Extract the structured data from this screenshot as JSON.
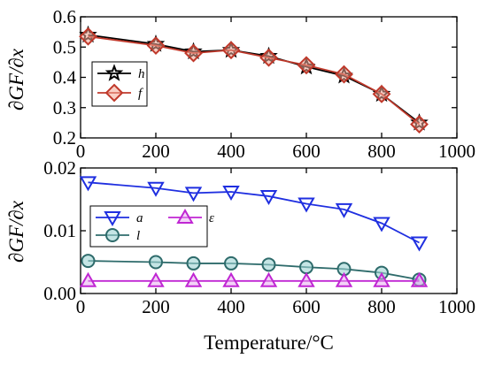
{
  "chart_data": [
    {
      "type": "line",
      "ylabel": "∂GF/∂x",
      "xlim": [
        0,
        1000
      ],
      "ylim": [
        0.2,
        0.6
      ],
      "xticks": [
        0,
        200,
        400,
        600,
        800,
        1000
      ],
      "yticks": [
        0.2,
        0.3,
        0.4,
        0.5,
        0.6
      ],
      "grid": false,
      "legend_position": "left",
      "series": [
        {
          "name": "h",
          "marker": "star",
          "color": "#000000",
          "x": [
            20,
            200,
            300,
            400,
            500,
            600,
            700,
            800,
            900
          ],
          "y": [
            0.54,
            0.51,
            0.485,
            0.49,
            0.47,
            0.435,
            0.405,
            0.345,
            0.25
          ]
        },
        {
          "name": "f",
          "marker": "diamond",
          "color": "#c0392b",
          "x": [
            20,
            200,
            300,
            400,
            500,
            600,
            700,
            800,
            900
          ],
          "y": [
            0.535,
            0.505,
            0.48,
            0.49,
            0.465,
            0.44,
            0.41,
            0.345,
            0.245
          ]
        }
      ]
    },
    {
      "type": "line",
      "xlabel": "Temperature/°C",
      "ylabel": "∂GF/∂x",
      "xlim": [
        0,
        1000
      ],
      "ylim": [
        0,
        0.02
      ],
      "xticks": [
        0,
        200,
        400,
        600,
        800,
        1000
      ],
      "yticks": [
        0,
        0.01,
        0.02
      ],
      "ytick_labels": [
        "0.00",
        "0.01",
        "0.02"
      ],
      "grid": false,
      "legend_position": "left",
      "series": [
        {
          "name": "a",
          "marker": "triangle-down",
          "color": "#1f2fe0",
          "x": [
            20,
            200,
            300,
            400,
            500,
            600,
            700,
            800,
            900
          ],
          "y": [
            0.0177,
            0.0168,
            0.016,
            0.0162,
            0.0155,
            0.0143,
            0.0134,
            0.0112,
            0.0081
          ]
        },
        {
          "name": "l",
          "marker": "circle",
          "color": "#2e6b6b",
          "x": [
            20,
            200,
            300,
            400,
            500,
            600,
            700,
            800,
            900
          ],
          "y": [
            0.0052,
            0.005,
            0.0048,
            0.0048,
            0.0046,
            0.0042,
            0.0039,
            0.0033,
            0.0022
          ]
        },
        {
          "name": "ε",
          "marker": "triangle-up",
          "color": "#c026d3",
          "x": [
            20,
            200,
            300,
            400,
            500,
            600,
            700,
            800,
            900
          ],
          "y": [
            0.002,
            0.002,
            0.002,
            0.002,
            0.002,
            0.002,
            0.002,
            0.002,
            0.002
          ]
        }
      ]
    }
  ]
}
